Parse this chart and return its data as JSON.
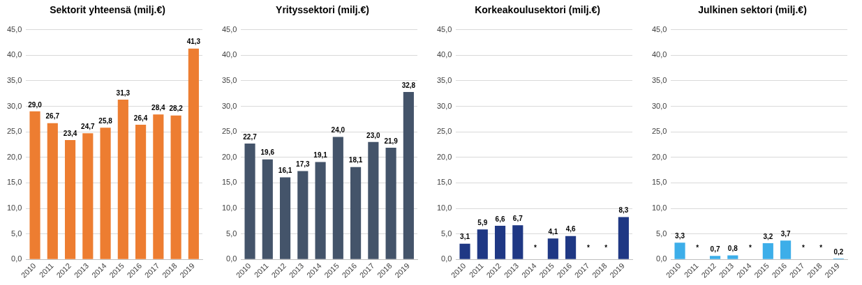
{
  "chart_data": [
    {
      "type": "bar",
      "title": "Sektorit yhteensä (milj.€)",
      "categories": [
        "2010",
        "2011",
        "2012",
        "2013",
        "2014",
        "2015",
        "2016",
        "2017",
        "2018",
        "2019"
      ],
      "values": [
        29.0,
        26.7,
        23.4,
        24.7,
        25.8,
        31.3,
        26.4,
        28.4,
        28.2,
        41.3
      ],
      "color": "#ed7d31",
      "value_labels": [
        "29,0",
        "26,7",
        "23,4",
        "24,7",
        "25,8",
        "31,3",
        "26,4",
        "28,4",
        "28,2",
        "41,3"
      ],
      "ylim": [
        0,
        45
      ],
      "yticks": [
        {
          "value": 0,
          "label": "0,0"
        },
        {
          "value": 5,
          "label": "5,0"
        },
        {
          "value": 10,
          "label": "10,0"
        },
        {
          "value": 15,
          "label": "15,0"
        },
        {
          "value": 20,
          "label": "20,0"
        },
        {
          "value": 25,
          "label": "25,0"
        },
        {
          "value": 30,
          "label": "30,0"
        },
        {
          "value": 35,
          "label": "35,0"
        },
        {
          "value": 40,
          "label": "40,0"
        },
        {
          "value": 45,
          "label": "45,0"
        }
      ],
      "grid": "y"
    },
    {
      "type": "bar",
      "title": "Yrityssektori (milj.€)",
      "categories": [
        "2010",
        "2011",
        "2012",
        "2013",
        "2014",
        "2015",
        "2016",
        "2017",
        "2018",
        "2019"
      ],
      "values": [
        22.7,
        19.6,
        16.1,
        17.3,
        19.1,
        24.0,
        18.1,
        23.0,
        21.9,
        32.8
      ],
      "color": "#44546a",
      "value_labels": [
        "22,7",
        "19,6",
        "16,1",
        "17,3",
        "19,1",
        "24,0",
        "18,1",
        "23,0",
        "21,9",
        "32,8"
      ],
      "ylim": [
        0,
        45
      ],
      "yticks": [
        {
          "value": 0,
          "label": "0,0"
        },
        {
          "value": 5,
          "label": "5,0"
        },
        {
          "value": 10,
          "label": "10,0"
        },
        {
          "value": 15,
          "label": "15,0"
        },
        {
          "value": 20,
          "label": "20,0"
        },
        {
          "value": 25,
          "label": "25,0"
        },
        {
          "value": 30,
          "label": "30,0"
        },
        {
          "value": 35,
          "label": "35,0"
        },
        {
          "value": 40,
          "label": "40,0"
        },
        {
          "value": 45,
          "label": "45,0"
        }
      ],
      "grid": "y"
    },
    {
      "type": "bar",
      "title": "Korkeakoulusektori (milj.€)",
      "categories": [
        "2010",
        "2011",
        "2012",
        "2013",
        "2014",
        "2015",
        "2016",
        "2017",
        "2018",
        "2019"
      ],
      "values": [
        3.1,
        5.9,
        6.6,
        6.7,
        null,
        4.1,
        4.6,
        null,
        null,
        8.3
      ],
      "color": "#1f3884",
      "value_labels": [
        "3,1",
        "5,9",
        "6,6",
        "6,7",
        "*",
        "4,1",
        "4,6",
        "*",
        "*",
        "8,3"
      ],
      "ylim": [
        0,
        45
      ],
      "yticks": [
        {
          "value": 0,
          "label": "0,0"
        },
        {
          "value": 5,
          "label": "5,0"
        },
        {
          "value": 10,
          "label": "10,0"
        },
        {
          "value": 15,
          "label": "15,0"
        },
        {
          "value": 20,
          "label": "20,0"
        },
        {
          "value": 25,
          "label": "25,0"
        },
        {
          "value": 30,
          "label": "30,0"
        },
        {
          "value": 35,
          "label": "35,0"
        },
        {
          "value": 40,
          "label": "40,0"
        },
        {
          "value": 45,
          "label": "45,0"
        }
      ],
      "grid": "y"
    },
    {
      "type": "bar",
      "title": "Julkinen sektori (milj.€)",
      "categories": [
        "2010",
        "2011",
        "2012",
        "2013",
        "2014",
        "2015",
        "2016",
        "2017",
        "2018",
        "2019"
      ],
      "values": [
        3.3,
        null,
        0.7,
        0.8,
        null,
        3.2,
        3.7,
        null,
        null,
        0.2
      ],
      "color": "#3daee9",
      "value_labels": [
        "3,3",
        "*",
        "0,7",
        "0,8",
        "*",
        "3,2",
        "3,7",
        "*",
        "*",
        "0,2"
      ],
      "ylim": [
        0,
        45
      ],
      "yticks": [
        {
          "value": 0,
          "label": "0,0"
        },
        {
          "value": 5,
          "label": "5,0"
        },
        {
          "value": 10,
          "label": "10,0"
        },
        {
          "value": 15,
          "label": "15,0"
        },
        {
          "value": 20,
          "label": "20,0"
        },
        {
          "value": 25,
          "label": "25,0"
        },
        {
          "value": 30,
          "label": "30,0"
        },
        {
          "value": 35,
          "label": "35,0"
        },
        {
          "value": 40,
          "label": "40,0"
        },
        {
          "value": 45,
          "label": "45,0"
        }
      ],
      "grid": "y"
    }
  ]
}
